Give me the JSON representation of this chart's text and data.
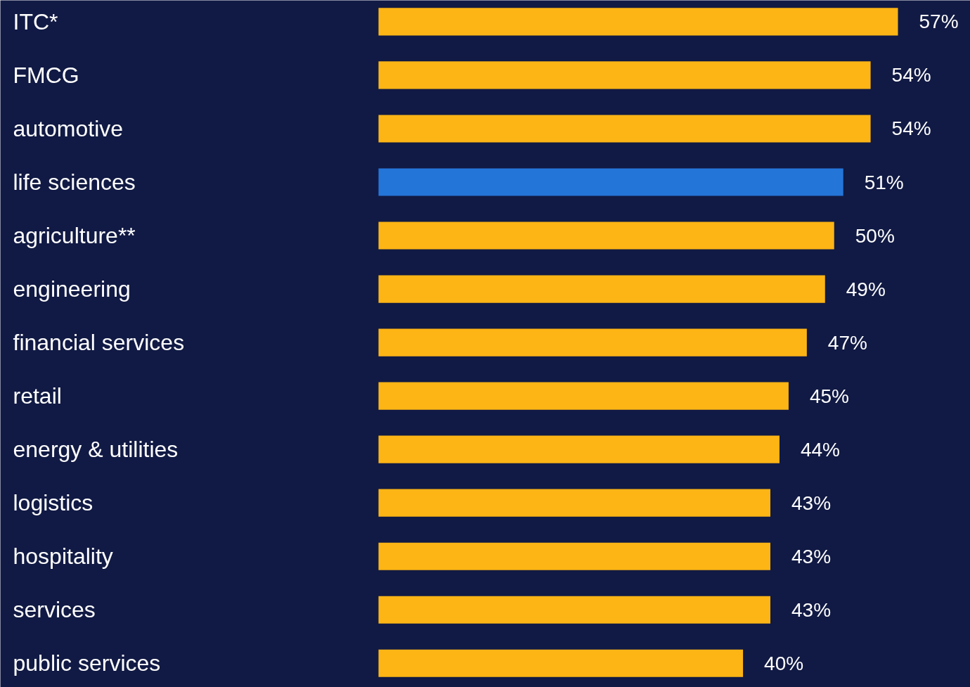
{
  "chart_data": {
    "type": "bar",
    "orientation": "horizontal",
    "categories": [
      "ITC*",
      "FMCG",
      "automotive",
      "life sciences",
      "agriculture**",
      "engineering",
      "financial services",
      "retail",
      "energy & utilities",
      "logistics",
      "hospitality",
      "services",
      "public services"
    ],
    "values": [
      57,
      54,
      54,
      51,
      50,
      49,
      47,
      45,
      44,
      43,
      43,
      43,
      40
    ],
    "colors": [
      "#fdb515",
      "#fdb515",
      "#fdb515",
      "#2475d8",
      "#fdb515",
      "#fdb515",
      "#fdb515",
      "#fdb515",
      "#fdb515",
      "#fdb515",
      "#fdb515",
      "#fdb515",
      "#fdb515"
    ],
    "value_labels": [
      "57%",
      "54%",
      "54%",
      "51%",
      "50%",
      "49%",
      "47%",
      "45%",
      "44%",
      "43%",
      "43%",
      "43%",
      "40%"
    ],
    "grid": false
  }
}
